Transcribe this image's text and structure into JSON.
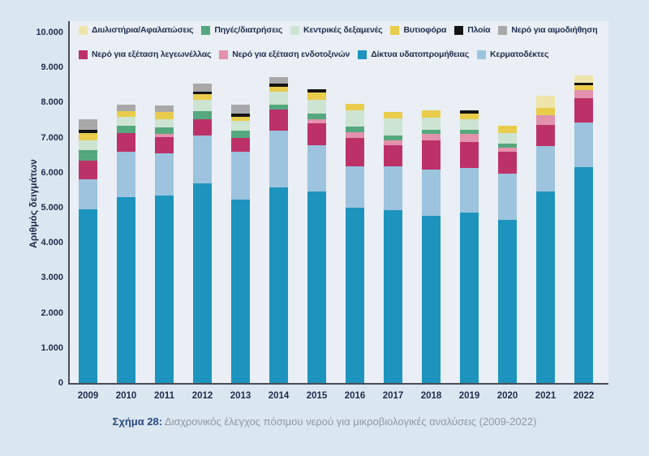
{
  "figure": {
    "caption_prefix": "Σχήμα 28:",
    "caption_text": " Διαχρονικός έλεγχος πόσιμου νερού για μικροβιολογικές αναλύσεις (2009-2022)"
  },
  "colors": {
    "page_background": "#dbe7f0",
    "plot_background": "#e9eff5",
    "axis_line": "#4b4b55",
    "axis_text": "#1e2b4d",
    "caption_prefix": "#28497f",
    "caption_text": "#9097a1"
  },
  "y_axis": {
    "title": "Αριθμός δειγμάτων",
    "tick_labels": [
      "10.000",
      "9.000",
      "8.000",
      "7.000",
      "6.000",
      "5.000",
      "4.000",
      "3.000",
      "2.000",
      "1.000",
      "0"
    ]
  },
  "x_axis": {
    "years": [
      "2009",
      "2010",
      "2011",
      "2012",
      "2013",
      "2014",
      "2015",
      "2016",
      "2017",
      "2018",
      "2019",
      "2020",
      "2021",
      "2022"
    ]
  },
  "legend": {
    "row1": [
      {
        "label": "Διυλιστήρια/Αφαλατώσεις",
        "color": "#efe5ab"
      },
      {
        "label": "Πηγές/διατρήσεις",
        "color": "#55a87d"
      },
      {
        "label": "Κεντρικές δεξαμενές",
        "color": "#cde4d2"
      },
      {
        "label": "Βυτιοφόρα",
        "color": "#e9cc4c"
      },
      {
        "label": "Πλοία",
        "color": "#141414"
      },
      {
        "label": "Νερό για αιμοδιήθηση",
        "color": "#a8a8a8"
      }
    ],
    "row2": [
      {
        "label": "Νερό για εξέταση λεγεωνέλλας",
        "color": "#bd3169"
      },
      {
        "label": "Νερό για εξέταση ενδοτοξινών",
        "color": "#e292ac"
      },
      {
        "label": "Δίκτυα υδατοπρομήθειας",
        "color": "#1c94be"
      },
      {
        "label": "Κερματοδέκτες",
        "color": "#9dc3de"
      }
    ]
  },
  "chart_data": {
    "type": "bar",
    "stacked": true,
    "title": "",
    "xlabel": "",
    "ylabel": "Αριθμός δειγμάτων",
    "ylim": [
      0,
      10000
    ],
    "y_step": 1000,
    "grid": false,
    "legend_position": "top-left",
    "categories": [
      "2009",
      "2010",
      "2011",
      "2012",
      "2013",
      "2014",
      "2015",
      "2016",
      "2017",
      "2018",
      "2019",
      "2020",
      "2021",
      "2022"
    ],
    "series": [
      {
        "name": "Δίκτυα υδατοπρομήθειας",
        "color": "#1c94be",
        "values": [
          4950,
          5310,
          5350,
          5700,
          5230,
          5580,
          5470,
          5000,
          4930,
          4770,
          4850,
          4650,
          5470,
          6150
        ]
      },
      {
        "name": "Κερματοδέκτες",
        "color": "#9dc3de",
        "values": [
          850,
          1280,
          1200,
          1360,
          1360,
          1630,
          1320,
          1170,
          1240,
          1320,
          1280,
          1320,
          1280,
          1280
        ]
      },
      {
        "name": "Νερό για εξέταση λεγεωνέλλας",
        "color": "#bd3169",
        "values": [
          550,
          530,
          470,
          470,
          390,
          580,
          620,
          820,
          620,
          820,
          740,
          620,
          620,
          700
        ]
      },
      {
        "name": "Νερό για εξέταση ενδοτοξινών",
        "color": "#e292ac",
        "values": [
          0,
          0,
          80,
          0,
          0,
          0,
          120,
          160,
          120,
          200,
          230,
          120,
          270,
          230
        ]
      },
      {
        "name": "Πηγές/διατρήσεις",
        "color": "#55a87d",
        "values": [
          290,
          210,
          200,
          230,
          230,
          160,
          160,
          160,
          160,
          120,
          120,
          120,
          0,
          0
        ]
      },
      {
        "name": "Κεντρικές δεξαμενές",
        "color": "#cde4d2",
        "values": [
          290,
          260,
          230,
          310,
          270,
          350,
          390,
          470,
          470,
          350,
          310,
          310,
          0,
          0
        ]
      },
      {
        "name": "Βυτιοφόρα",
        "color": "#e9cc4c",
        "values": [
          210,
          170,
          190,
          160,
          120,
          160,
          200,
          190,
          200,
          200,
          160,
          200,
          200,
          130
        ]
      },
      {
        "name": "Πλοία",
        "color": "#141414",
        "values": [
          80,
          0,
          0,
          80,
          80,
          80,
          90,
          0,
          0,
          0,
          80,
          0,
          0,
          70
        ]
      },
      {
        "name": "Νερό για αιμοδιήθηση",
        "color": "#a8a8a8",
        "values": [
          300,
          190,
          190,
          230,
          270,
          190,
          0,
          0,
          0,
          0,
          0,
          0,
          0,
          0
        ]
      },
      {
        "name": "Διυλιστήρια/Αφαλατώσεις",
        "color": "#efe5ab",
        "values": [
          0,
          0,
          0,
          0,
          0,
          0,
          0,
          0,
          0,
          0,
          0,
          0,
          350,
          210
        ]
      }
    ]
  }
}
